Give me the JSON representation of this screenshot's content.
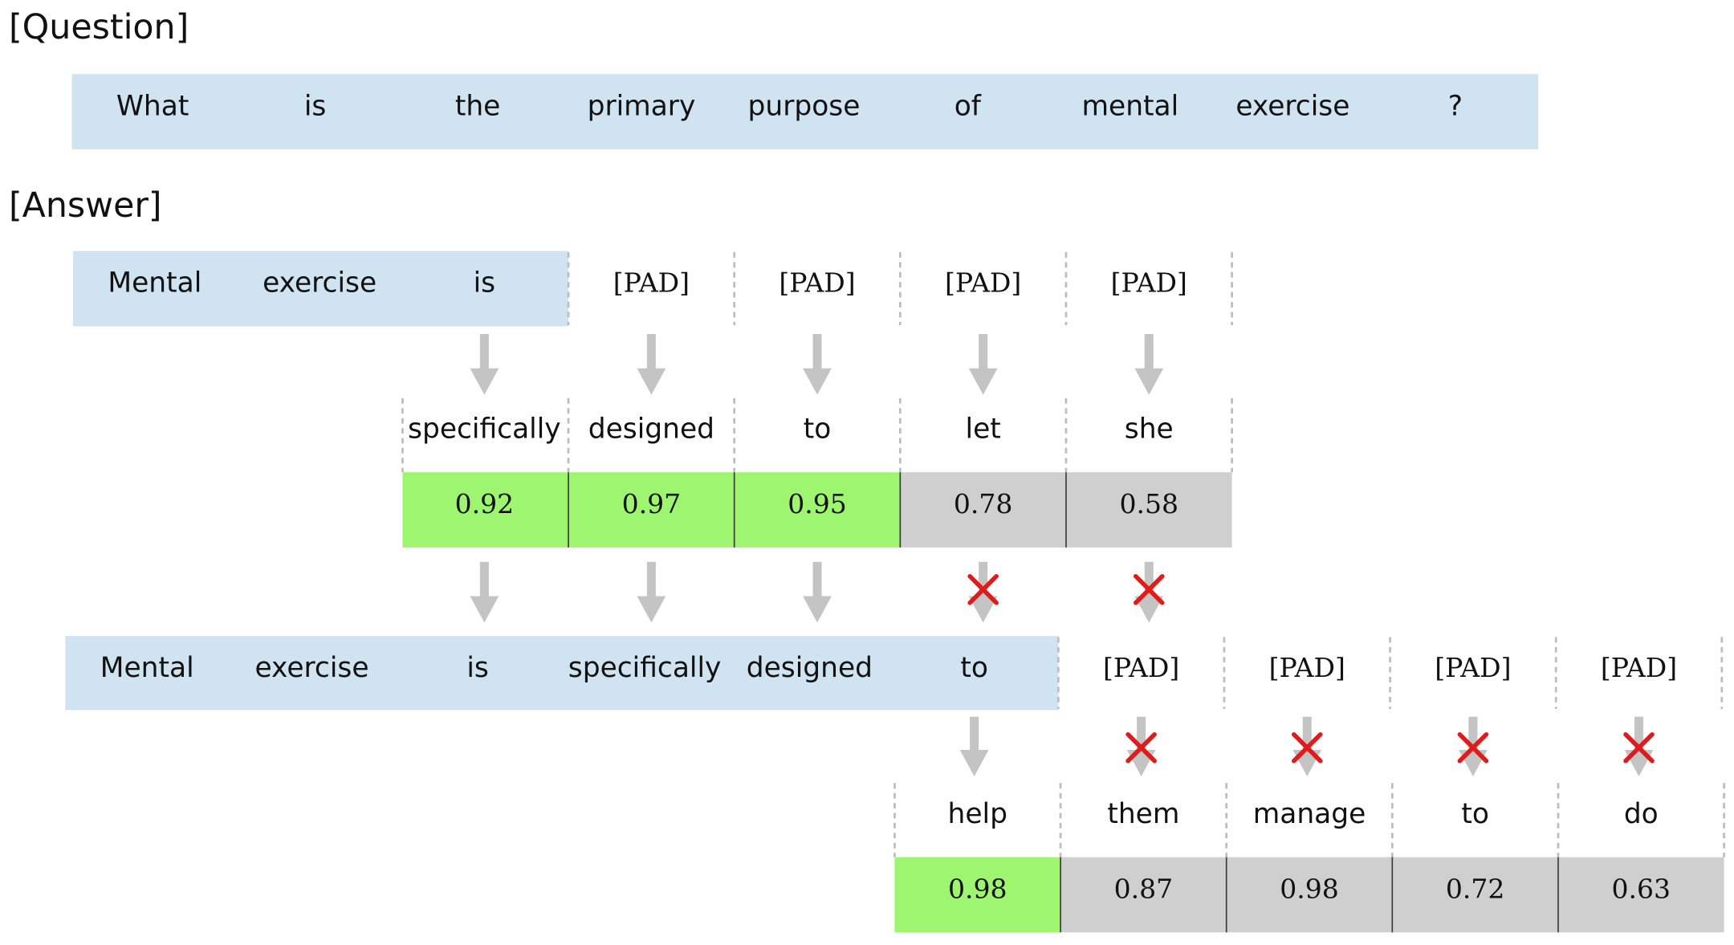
{
  "headings": {
    "question": "[Question]",
    "answer": "[Answer]"
  },
  "colors": {
    "prefix_bg": "#cfe3f1",
    "accepted": "#9ef56f",
    "rejected": "#cfcfcf",
    "arrow": "#c4c4c4",
    "reject_mark": "#e01b1b"
  },
  "question_tokens": [
    "What",
    "is",
    "the",
    "primary",
    "purpose",
    "of",
    "mental",
    "exercise",
    "?"
  ],
  "step1": {
    "prefix_tokens": [
      "Mental",
      "exercise",
      "is"
    ],
    "pad_tokens": [
      "[PAD]",
      "[PAD]",
      "[PAD]",
      "[PAD]"
    ],
    "predictions": [
      {
        "token": "specifically",
        "score": "0.92",
        "accepted": true
      },
      {
        "token": "designed",
        "score": "0.97",
        "accepted": true
      },
      {
        "token": "to",
        "score": "0.95",
        "accepted": true
      },
      {
        "token": "let",
        "score": "0.78",
        "accepted": false
      },
      {
        "token": "she",
        "score": "0.58",
        "accepted": false
      }
    ]
  },
  "step2": {
    "prefix_tokens": [
      "Mental",
      "exercise",
      "is",
      "specifically",
      "designed",
      "to"
    ],
    "pad_tokens": [
      "[PAD]",
      "[PAD]",
      "[PAD]",
      "[PAD]"
    ],
    "predictions": [
      {
        "token": "help",
        "score": "0.98",
        "accepted": true
      },
      {
        "token": "them",
        "score": "0.87",
        "accepted": false
      },
      {
        "token": "manage",
        "score": "0.98",
        "accepted": false
      },
      {
        "token": "to",
        "score": "0.72",
        "accepted": false
      },
      {
        "token": "do",
        "score": "0.63",
        "accepted": false
      }
    ]
  }
}
